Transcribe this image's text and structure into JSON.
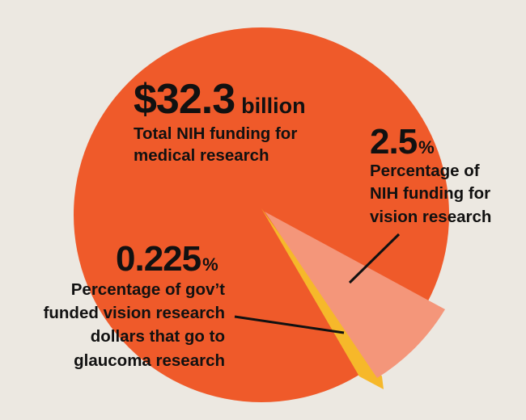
{
  "total": {
    "amount": "$32.3",
    "unit": "billion",
    "label": [
      "Total NIH funding for",
      "medical research"
    ]
  },
  "vision": {
    "value": 2.5,
    "unit": "%",
    "label": [
      "Percentage of",
      "NIH funding for",
      "vision research"
    ]
  },
  "glaucoma": {
    "value": 0.225,
    "unit": "%",
    "label": [
      "Percentage of gov’t",
      "funded vision research",
      "dollars that go to",
      "glaucoma research"
    ]
  }
}
